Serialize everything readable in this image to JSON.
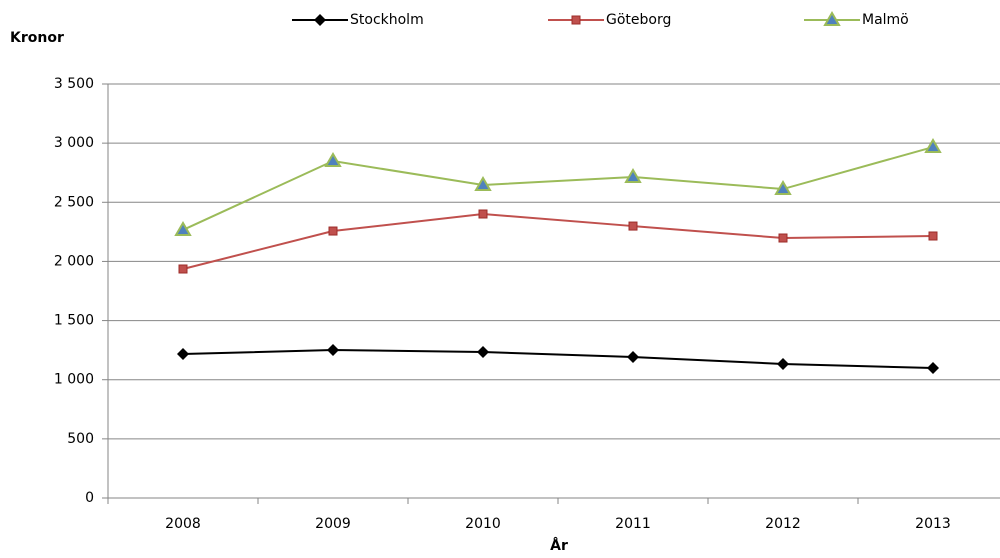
{
  "chart_data": {
    "type": "line",
    "y_axis_label": "Kronor",
    "x_axis_label": "År",
    "categories": [
      "2008",
      "2009",
      "2010",
      "2011",
      "2012",
      "2013"
    ],
    "series": [
      {
        "name": "Stockholm",
        "color": "#000000",
        "marker": "diamond",
        "values": [
          1217,
          1251,
          1234,
          1192,
          1133,
          1099
        ]
      },
      {
        "name": "Göteborg",
        "color": "#c0504d",
        "marker": "square",
        "values": [
          1936,
          2257,
          2401,
          2299,
          2198,
          2215
        ]
      },
      {
        "name": "Malmö",
        "color": "#9bbb59",
        "marker": "triangle",
        "values": [
          2266,
          2849,
          2646,
          2714,
          2612,
          2967
        ]
      }
    ],
    "ylim": [
      0,
      3500
    ],
    "yticks": [
      0,
      500,
      {
        "value": 1000,
        "label": "1 000"
      },
      {
        "value": 1500,
        "label": "1 500"
      },
      {
        "value": 2000,
        "label": "2 000"
      },
      {
        "value": 2500,
        "label": "2 500"
      },
      {
        "value": 3000,
        "label": "3 000"
      },
      {
        "value": 3500,
        "label": "3 500"
      }
    ],
    "grid": true,
    "legend": "top"
  }
}
